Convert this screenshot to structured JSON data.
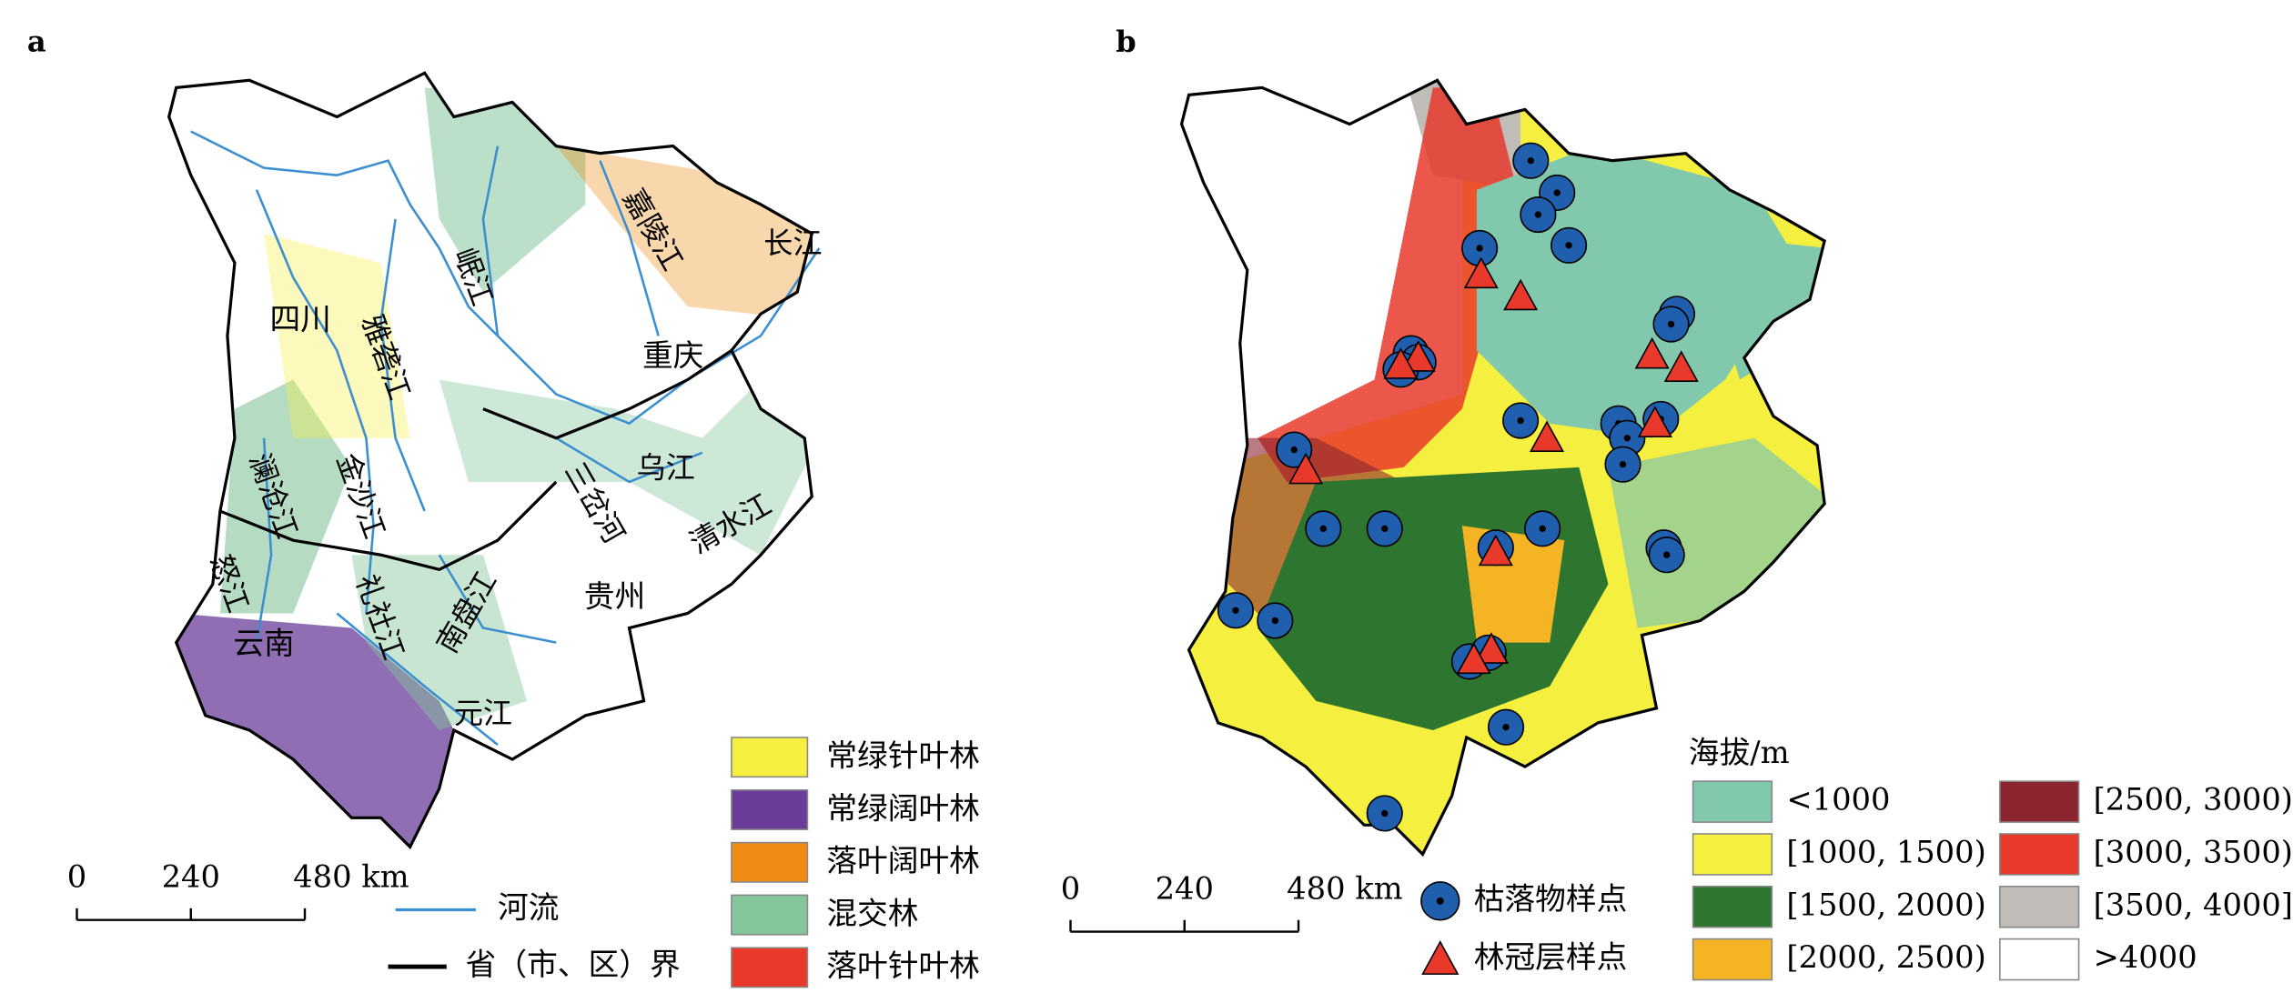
{
  "panel_a": {
    "label": "a",
    "provinces": [
      "四川",
      "重庆",
      "贵州",
      "云南"
    ],
    "rivers": [
      "嘉陵江",
      "长江",
      "岷江",
      "雅砻江",
      "澜沧江",
      "金沙江",
      "乌江",
      "三岔河",
      "清水江",
      "怒江",
      "礼社江",
      "南盘江",
      "元江"
    ],
    "scale_labels": [
      "0",
      "240",
      "480 km"
    ],
    "legend": [
      {
        "label": "常绿针叶林",
        "color": "#f5ef40"
      },
      {
        "label": "常绿阔叶林",
        "color": "#6a3d9a"
      },
      {
        "label": "落叶阔叶林",
        "color": "#ee8b12"
      },
      {
        "label": "混交林",
        "color": "#84c59b"
      },
      {
        "label": "落叶针叶林",
        "color": "#e8392b"
      }
    ],
    "line_legend": [
      {
        "label": "河流",
        "color": "#3b8fd0"
      },
      {
        "label": "省（市、区）界",
        "color": "#000000"
      }
    ]
  },
  "panel_b": {
    "label": "b",
    "scale_labels": [
      "0",
      "240",
      "480 km"
    ],
    "point_legend": [
      {
        "label": "枯落物样点",
        "color": "#1f5fae"
      },
      {
        "label": "林冠层样点",
        "color": "#e8392b"
      }
    ],
    "legend_title": "海拔/m",
    "legend": [
      {
        "label": "<1000",
        "color": "#82c8ad"
      },
      {
        "label": "[1000, 1500)",
        "color": "#f5ef40"
      },
      {
        "label": "[1500, 2000)",
        "color": "#2e7530"
      },
      {
        "label": "[2000, 2500)",
        "color": "#f5b424"
      },
      {
        "label": "[2500, 3000)",
        "color": "#8b2530"
      },
      {
        "label": "[3000, 3500)",
        "color": "#e8392b"
      },
      {
        "label": "[3500, 4000]",
        "color": "#c0bcb8"
      },
      {
        "label": ">4000",
        "color": "#ffffff"
      }
    ]
  }
}
